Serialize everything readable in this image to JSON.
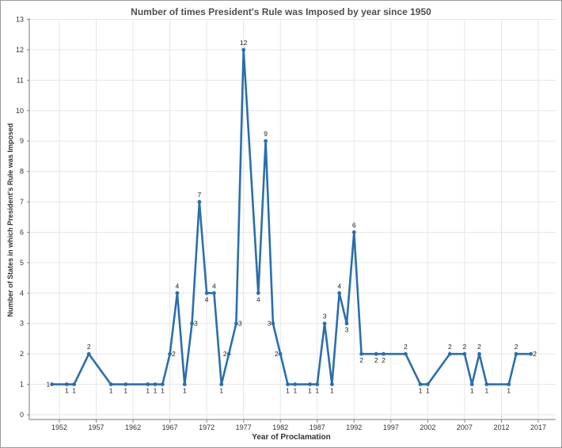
{
  "chart_data": {
    "type": "line",
    "title": "Number of times President's Rule was Imposed by year since 1950",
    "xlabel": "Year of  Proclamation",
    "ylabel": "Number of States in which President's Rule was Imposed",
    "xlim": [
      1947,
      2018
    ],
    "ylim": [
      0,
      13
    ],
    "x_ticks": [
      1952,
      1957,
      1962,
      1967,
      1972,
      1977,
      1982,
      1987,
      1992,
      1997,
      2002,
      2007,
      2012,
      2017
    ],
    "y_ticks": [
      0,
      1,
      2,
      3,
      4,
      5,
      6,
      7,
      8,
      9,
      10,
      11,
      12,
      13
    ],
    "grid": true,
    "color": "#2a6fad",
    "points": [
      {
        "x": 1951,
        "y": 1,
        "label": "1",
        "pos": "left"
      },
      {
        "x": 1953,
        "y": 1,
        "label": "1",
        "pos": "below"
      },
      {
        "x": 1954,
        "y": 1,
        "label": "1",
        "pos": "below"
      },
      {
        "x": 1956,
        "y": 2,
        "label": "2",
        "pos": "above"
      },
      {
        "x": 1959,
        "y": 1,
        "label": "1",
        "pos": "below"
      },
      {
        "x": 1961,
        "y": 1,
        "label": "1",
        "pos": "below"
      },
      {
        "x": 1964,
        "y": 1,
        "label": "1",
        "pos": "below"
      },
      {
        "x": 1965,
        "y": 1,
        "label": "1",
        "pos": "below"
      },
      {
        "x": 1966,
        "y": 1,
        "label": "1",
        "pos": "below"
      },
      {
        "x": 1967,
        "y": 2,
        "label": "2",
        "pos": "right"
      },
      {
        "x": 1968,
        "y": 4,
        "label": "4",
        "pos": "above"
      },
      {
        "x": 1969,
        "y": 1,
        "label": "1",
        "pos": "below"
      },
      {
        "x": 1970,
        "y": 3,
        "label": "3",
        "pos": "right"
      },
      {
        "x": 1971,
        "y": 7,
        "label": "7",
        "pos": "above"
      },
      {
        "x": 1972,
        "y": 4,
        "label": "4",
        "pos": "below"
      },
      {
        "x": 1973,
        "y": 4,
        "label": "4",
        "pos": "above"
      },
      {
        "x": 1974,
        "y": 1,
        "label": "1",
        "pos": "below"
      },
      {
        "x": 1975,
        "y": 2,
        "label": "2",
        "pos": "left"
      },
      {
        "x": 1976,
        "y": 3,
        "label": "3",
        "pos": "right"
      },
      {
        "x": 1977,
        "y": 12,
        "label": "12",
        "pos": "above"
      },
      {
        "x": 1979,
        "y": 4,
        "label": "4",
        "pos": "below"
      },
      {
        "x": 1980,
        "y": 9,
        "label": "9",
        "pos": "above"
      },
      {
        "x": 1981,
        "y": 3,
        "label": "3",
        "pos": "left"
      },
      {
        "x": 1982,
        "y": 2,
        "label": "2",
        "pos": "left"
      },
      {
        "x": 1983,
        "y": 1,
        "label": "1",
        "pos": "below"
      },
      {
        "x": 1984,
        "y": 1,
        "label": "1",
        "pos": "below"
      },
      {
        "x": 1986,
        "y": 1,
        "label": "1",
        "pos": "below"
      },
      {
        "x": 1987,
        "y": 1,
        "label": "1",
        "pos": "below"
      },
      {
        "x": 1988,
        "y": 3,
        "label": "3",
        "pos": "above"
      },
      {
        "x": 1989,
        "y": 1,
        "label": "1",
        "pos": "below"
      },
      {
        "x": 1990,
        "y": 4,
        "label": "4",
        "pos": "above"
      },
      {
        "x": 1991,
        "y": 3,
        "label": "3",
        "pos": "below"
      },
      {
        "x": 1992,
        "y": 6,
        "label": "6",
        "pos": "above"
      },
      {
        "x": 1993,
        "y": 2,
        "label": "2",
        "pos": "below"
      },
      {
        "x": 1995,
        "y": 2,
        "label": "2",
        "pos": "below"
      },
      {
        "x": 1996,
        "y": 2,
        "label": "2",
        "pos": "below"
      },
      {
        "x": 1999,
        "y": 2,
        "label": "2",
        "pos": "above"
      },
      {
        "x": 2001,
        "y": 1,
        "label": "1",
        "pos": "below"
      },
      {
        "x": 2002,
        "y": 1,
        "label": "1",
        "pos": "below"
      },
      {
        "x": 2005,
        "y": 2,
        "label": "2",
        "pos": "above"
      },
      {
        "x": 2007,
        "y": 2,
        "label": "2",
        "pos": "above"
      },
      {
        "x": 2008,
        "y": 1,
        "label": "1",
        "pos": "below"
      },
      {
        "x": 2009,
        "y": 2,
        "label": "2",
        "pos": "above"
      },
      {
        "x": 2010,
        "y": 1,
        "label": "1",
        "pos": "below"
      },
      {
        "x": 2013,
        "y": 1,
        "label": "1",
        "pos": "below"
      },
      {
        "x": 2014,
        "y": 2,
        "label": "2",
        "pos": "above"
      },
      {
        "x": 2016,
        "y": 2,
        "label": "2",
        "pos": "right"
      }
    ]
  }
}
